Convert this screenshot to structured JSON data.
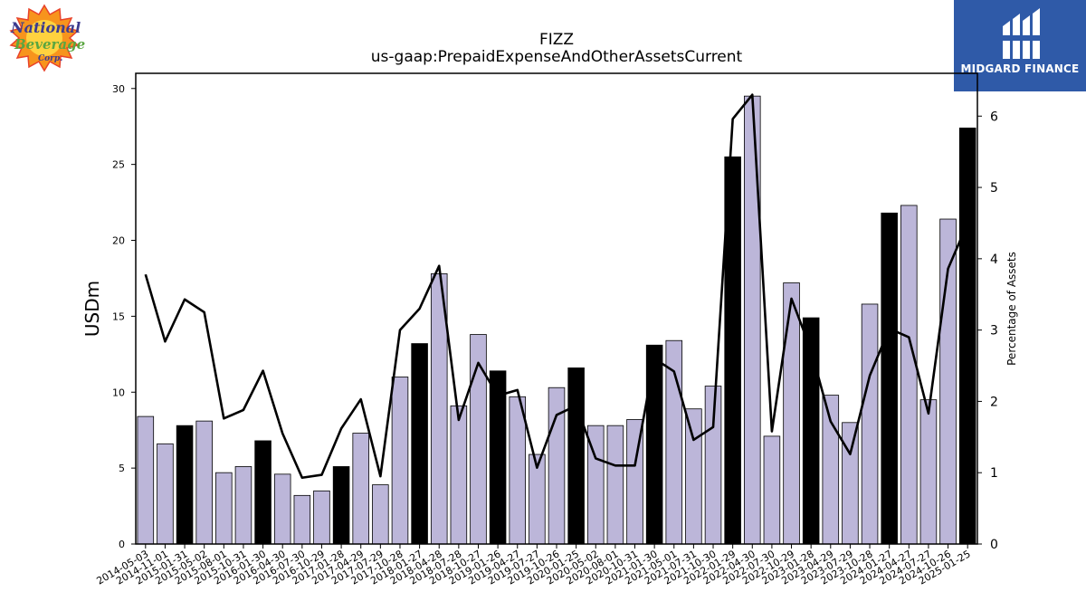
{
  "brand_left": "National Beverage",
  "brand_right": "MIDGARD FINANCE",
  "chart_data": {
    "type": "bar",
    "title": "FIZZ",
    "subtitle": "us-gaap:PrepaidExpenseAndOtherAssetsCurrent",
    "ylabel": "USDm",
    "y2label": "Percentage of Assets",
    "ylim": [
      0,
      31
    ],
    "y2lim": [
      0,
      6.6
    ],
    "yticks": [
      0,
      5,
      10,
      15,
      20,
      25,
      30
    ],
    "y2ticks": [
      0,
      1,
      2,
      3,
      4,
      5,
      6
    ],
    "categories": [
      "2014-05-03",
      "2014-11-01",
      "2015-01-31",
      "2015-05-02",
      "2015-08-01",
      "2015-10-31",
      "2016-01-30",
      "2016-04-30",
      "2016-07-30",
      "2016-10-29",
      "2017-01-28",
      "2017-04-29",
      "2017-07-29",
      "2017-10-28",
      "2018-01-27",
      "2018-04-28",
      "2018-07-28",
      "2018-10-27",
      "2019-01-26",
      "2019-04-27",
      "2019-07-27",
      "2019-10-26",
      "2020-01-25",
      "2020-05-02",
      "2020-08-01",
      "2020-10-31",
      "2021-01-30",
      "2021-05-01",
      "2021-07-31",
      "2021-10-30",
      "2022-01-29",
      "2022-04-30",
      "2022-07-30",
      "2022-10-29",
      "2023-01-28",
      "2023-04-29",
      "2023-07-29",
      "2023-10-28",
      "2024-01-27",
      "2024-04-27",
      "2024-07-27",
      "2024-10-26",
      "2025-01-25"
    ],
    "values": [
      8.4,
      6.6,
      7.8,
      8.1,
      4.7,
      5.1,
      6.8,
      4.6,
      3.2,
      3.5,
      5.1,
      7.3,
      3.9,
      11.0,
      13.2,
      17.8,
      9.1,
      13.8,
      11.4,
      9.7,
      5.9,
      10.3,
      11.6,
      7.8,
      7.8,
      8.2,
      13.1,
      13.4,
      8.9,
      10.4,
      25.5,
      29.5,
      7.1,
      17.2,
      14.9,
      9.8,
      8.0,
      15.8,
      21.8,
      22.3,
      9.5,
      21.4,
      27.4
    ],
    "highlight": [
      false,
      false,
      true,
      false,
      false,
      false,
      true,
      false,
      false,
      false,
      true,
      false,
      false,
      false,
      true,
      false,
      false,
      false,
      true,
      false,
      false,
      false,
      true,
      false,
      false,
      false,
      true,
      false,
      false,
      false,
      true,
      false,
      false,
      false,
      true,
      false,
      false,
      false,
      true,
      false,
      false,
      false,
      true
    ],
    "line_series": {
      "name": "Percentage of Assets",
      "values": [
        3.78,
        2.84,
        3.43,
        3.25,
        1.76,
        1.88,
        2.43,
        1.55,
        0.93,
        0.97,
        1.62,
        2.03,
        0.95,
        3.0,
        3.3,
        3.9,
        1.74,
        2.54,
        2.08,
        2.16,
        1.07,
        1.81,
        1.94,
        1.2,
        1.1,
        1.1,
        2.6,
        2.42,
        1.46,
        1.64,
        5.96,
        6.3,
        1.58,
        3.44,
        2.72,
        1.72,
        1.26,
        2.36,
        3.02,
        2.9,
        1.83,
        3.86,
        4.5
      ]
    },
    "colors": {
      "bar": "#bcb6d9",
      "bar_highlight": "#000000",
      "line": "#000000",
      "logo_bg": "#2f5aa8"
    },
    "grid": false,
    "legend": "none"
  }
}
